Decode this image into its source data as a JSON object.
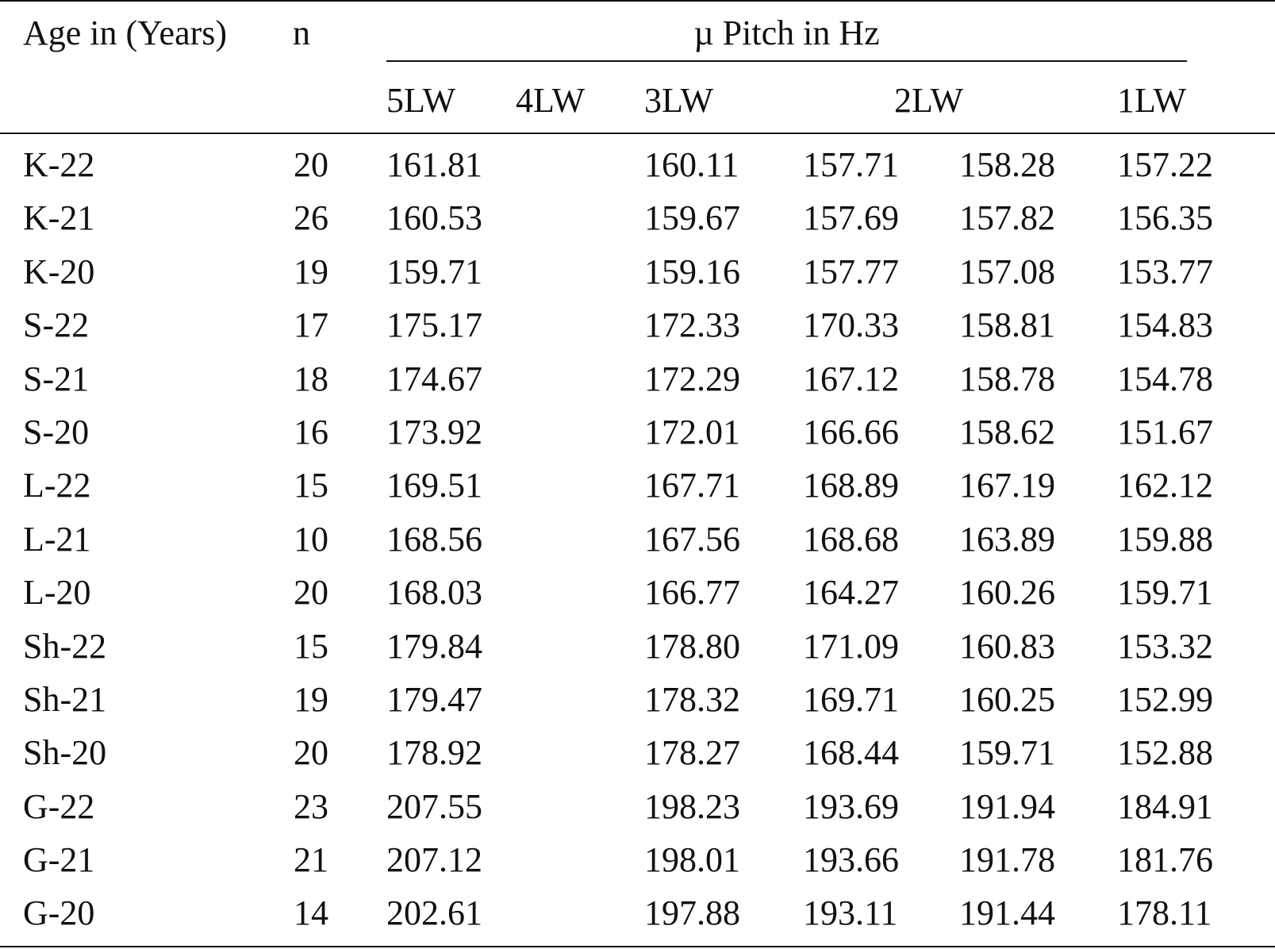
{
  "header": {
    "age": "Age in (Years)",
    "n": "n",
    "group": "µ Pitch in Hz",
    "sub": [
      "5LW",
      "4LW",
      "3LW",
      "2LW",
      "1LW"
    ]
  },
  "rows": [
    {
      "age": "K-22",
      "n": "20",
      "v5": "161.81",
      "v3": "160.11",
      "v2a": "157.71",
      "v2b": "158.28",
      "v1": "157.22"
    },
    {
      "age": "K-21",
      "n": "26",
      "v5": "160.53",
      "v3": "159.67",
      "v2a": "157.69",
      "v2b": "157.82",
      "v1": "156.35"
    },
    {
      "age": "K-20",
      "n": "19",
      "v5": "159.71",
      "v3": "159.16",
      "v2a": "157.77",
      "v2b": "157.08",
      "v1": "153.77"
    },
    {
      "age": "S-22",
      "n": "17",
      "v5": "175.17",
      "v3": "172.33",
      "v2a": "170.33",
      "v2b": "158.81",
      "v1": "154.83"
    },
    {
      "age": "S-21",
      "n": "18",
      "v5": "174.67",
      "v3": "172.29",
      "v2a": "167.12",
      "v2b": "158.78",
      "v1": "154.78"
    },
    {
      "age": "S-20",
      "n": "16",
      "v5": "173.92",
      "v3": "172.01",
      "v2a": "166.66",
      "v2b": "158.62",
      "v1": "151.67"
    },
    {
      "age": "L-22",
      "n": "15",
      "v5": "169.51",
      "v3": "167.71",
      "v2a": "168.89",
      "v2b": "167.19",
      "v1": "162.12"
    },
    {
      "age": "L-21",
      "n": "10",
      "v5": "168.56",
      "v3": "167.56",
      "v2a": "168.68",
      "v2b": "163.89",
      "v1": "159.88"
    },
    {
      "age": "L-20",
      "n": "20",
      "v5": "168.03",
      "v3": "166.77",
      "v2a": "164.27",
      "v2b": "160.26",
      "v1": "159.71"
    },
    {
      "age": "Sh-22",
      "n": "15",
      "v5": "179.84",
      "v3": "178.80",
      "v2a": "171.09",
      "v2b": "160.83",
      "v1": "153.32"
    },
    {
      "age": "Sh-21",
      "n": "19",
      "v5": "179.47",
      "v3": "178.32",
      "v2a": "169.71",
      "v2b": "160.25",
      "v1": "152.99"
    },
    {
      "age": "Sh-20",
      "n": "20",
      "v5": "178.92",
      "v3": "178.27",
      "v2a": "168.44",
      "v2b": "159.71",
      "v1": "152.88"
    },
    {
      "age": "G-22",
      "n": "23",
      "v5": "207.55",
      "v3": "198.23",
      "v2a": "193.69",
      "v2b": "191.94",
      "v1": "184.91"
    },
    {
      "age": "G-21",
      "n": "21",
      "v5": "207.12",
      "v3": "198.01",
      "v2a": "193.66",
      "v2b": "191.78",
      "v1": "181.76"
    },
    {
      "age": "G-20",
      "n": "14",
      "v5": "202.61",
      "v3": "197.88",
      "v2a": "193.11",
      "v2b": "191.44",
      "v1": "178.11"
    }
  ]
}
